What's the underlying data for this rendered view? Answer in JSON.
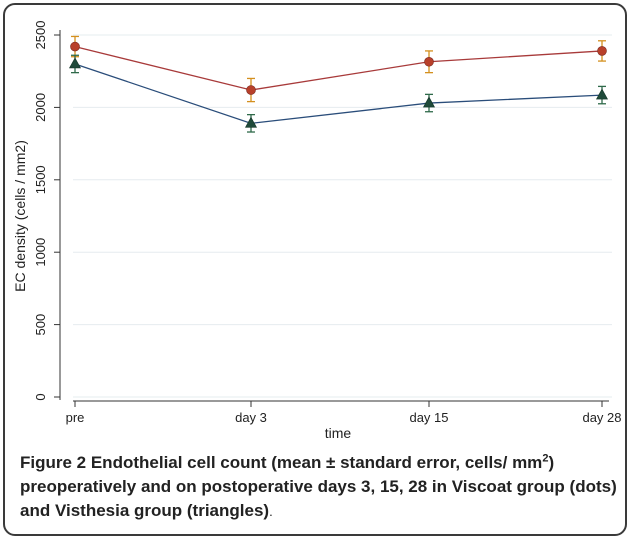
{
  "chart_data": {
    "type": "line",
    "categories": [
      "pre",
      "day 3",
      "day 15",
      "day 28"
    ],
    "xlabel": "time",
    "ylabel": "EC density (cells / mm2)",
    "ylim": [
      0,
      2500
    ],
    "yticks": [
      0,
      500,
      1000,
      1500,
      2000,
      2500
    ],
    "grid": true,
    "series": [
      {
        "marker": "dot",
        "color": "#a83a3a",
        "marker_color": "#b8402a",
        "error_color": "#d4901e",
        "values": [
          2420,
          2120,
          2315,
          2390
        ],
        "errors": [
          70,
          80,
          75,
          70
        ]
      },
      {
        "marker": "triangle",
        "color": "#2a4d7a",
        "marker_color": "#1f4a3a",
        "error_color": "#2f6a4a",
        "values": [
          2300,
          1890,
          2030,
          2085
        ],
        "errors": [
          60,
          60,
          60,
          60
        ]
      }
    ]
  },
  "caption": {
    "label": "Figure 2",
    "text_before_sup": " Endothelial cell count (mean ± standard error, cells/ mm",
    "sup": "2",
    "text_after_sup": ") preoperatively and on postoperative days 3, 15, 28 in Viscoat group (dots) and Visthesia group (triangles)",
    "end": "."
  }
}
